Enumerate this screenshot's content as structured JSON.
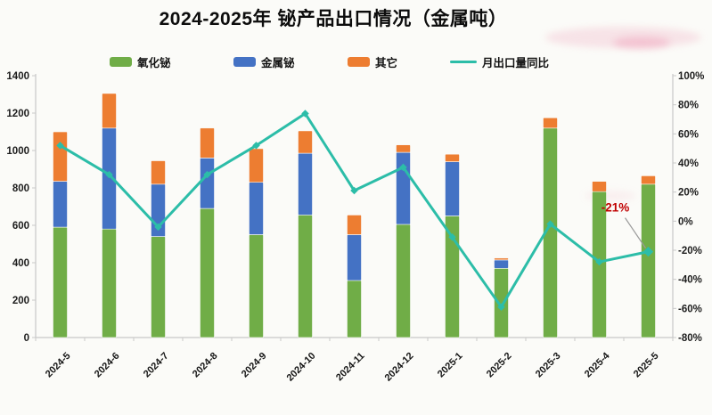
{
  "header": {
    "title": "2024-2025年 铋产品出口情况（金属吨）"
  },
  "legend": {
    "items": [
      {
        "label": "氧化铋",
        "color": "#70AD47",
        "kind": "swatch"
      },
      {
        "label": "金属铋",
        "color": "#4472C4",
        "kind": "swatch"
      },
      {
        "label": "其它",
        "color": "#ED7D31",
        "kind": "swatch"
      },
      {
        "label": "月出口量同比",
        "color": "#2CBDA8",
        "kind": "line"
      }
    ]
  },
  "chart_data": {
    "type": "bar",
    "subtype": "stacked-bars-with-yoy-line",
    "title": "2024-2025年 铋产品出口情况（金属吨）",
    "categories": [
      "2024-5",
      "2024-6",
      "2024-7",
      "2024-8",
      "2024-9",
      "2024-10",
      "2024-11",
      "2024-12",
      "2025-1",
      "2025-2",
      "2025-3",
      "2025-4",
      "2025-5"
    ],
    "series": [
      {
        "name": "氧化铋",
        "type": "bar",
        "color": "#70AD47",
        "values": [
          590,
          580,
          540,
          690,
          550,
          655,
          305,
          605,
          650,
          370,
          1120,
          780,
          820
        ]
      },
      {
        "name": "金属铋",
        "type": "bar",
        "color": "#4472C4",
        "values": [
          245,
          540,
          280,
          270,
          280,
          330,
          245,
          385,
          290,
          45,
          0,
          0,
          0
        ]
      },
      {
        "name": "其它",
        "type": "bar",
        "color": "#ED7D31",
        "values": [
          265,
          185,
          125,
          160,
          180,
          120,
          105,
          40,
          40,
          10,
          55,
          55,
          45
        ]
      },
      {
        "name": "月出口量同比",
        "type": "line",
        "axis": "right",
        "color": "#2CBDA8",
        "values_pct": [
          52,
          32,
          -4,
          32,
          52,
          74,
          21,
          37,
          -11,
          -59,
          -2,
          -28,
          -21
        ]
      }
    ],
    "left_axis": {
      "min": 0,
      "max": 1400,
      "step": 200,
      "ticks": [
        0,
        200,
        400,
        600,
        800,
        1000,
        1200,
        1400
      ]
    },
    "right_axis": {
      "min": -80,
      "max": 100,
      "step": 20,
      "suffix": "%",
      "ticks": [
        -80,
        -60,
        -40,
        -20,
        0,
        20,
        40,
        60,
        80,
        100
      ]
    },
    "grid": false,
    "legend_position": "top",
    "annotation": {
      "text": "-21%",
      "category": "2025-5",
      "color": "#C00000",
      "leader_color": "#9a9a9a"
    },
    "axis_color": "#c8c8c8"
  }
}
